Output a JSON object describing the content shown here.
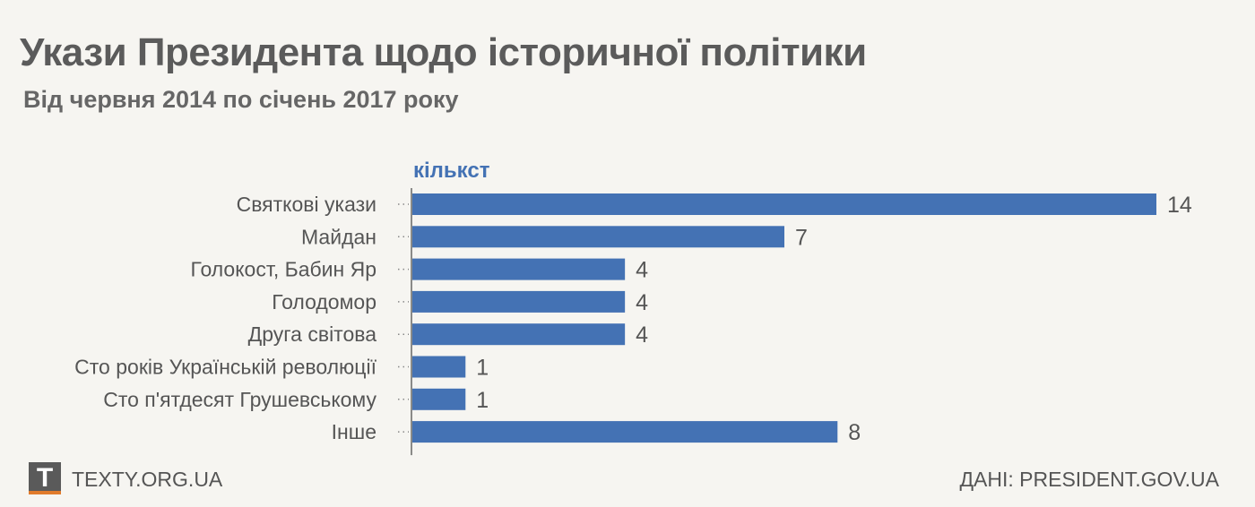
{
  "header": {
    "title": "Укази Президента щодо історичної політики",
    "subtitle": "Від червня 2014 по січень 2017 року"
  },
  "chart_data": {
    "type": "bar",
    "orientation": "horizontal",
    "axis_title": "кількст",
    "categories": [
      "Святкові укази",
      "Майдан",
      "Голокост, Бабин Яр",
      "Голодомор",
      "Друга світова",
      "Сто років Українській революції",
      "Сто п'ятдесят Грушевському",
      "Інше"
    ],
    "values": [
      14,
      7,
      4,
      4,
      4,
      1,
      1,
      8
    ],
    "xlim": [
      0,
      14
    ],
    "grid": false,
    "bar_color": "#4472b4"
  },
  "footer": {
    "logo_letter": "T",
    "site": "TEXTY.ORG.UA",
    "source": "ДАНІ: PRESIDENT.GOV.UA"
  }
}
